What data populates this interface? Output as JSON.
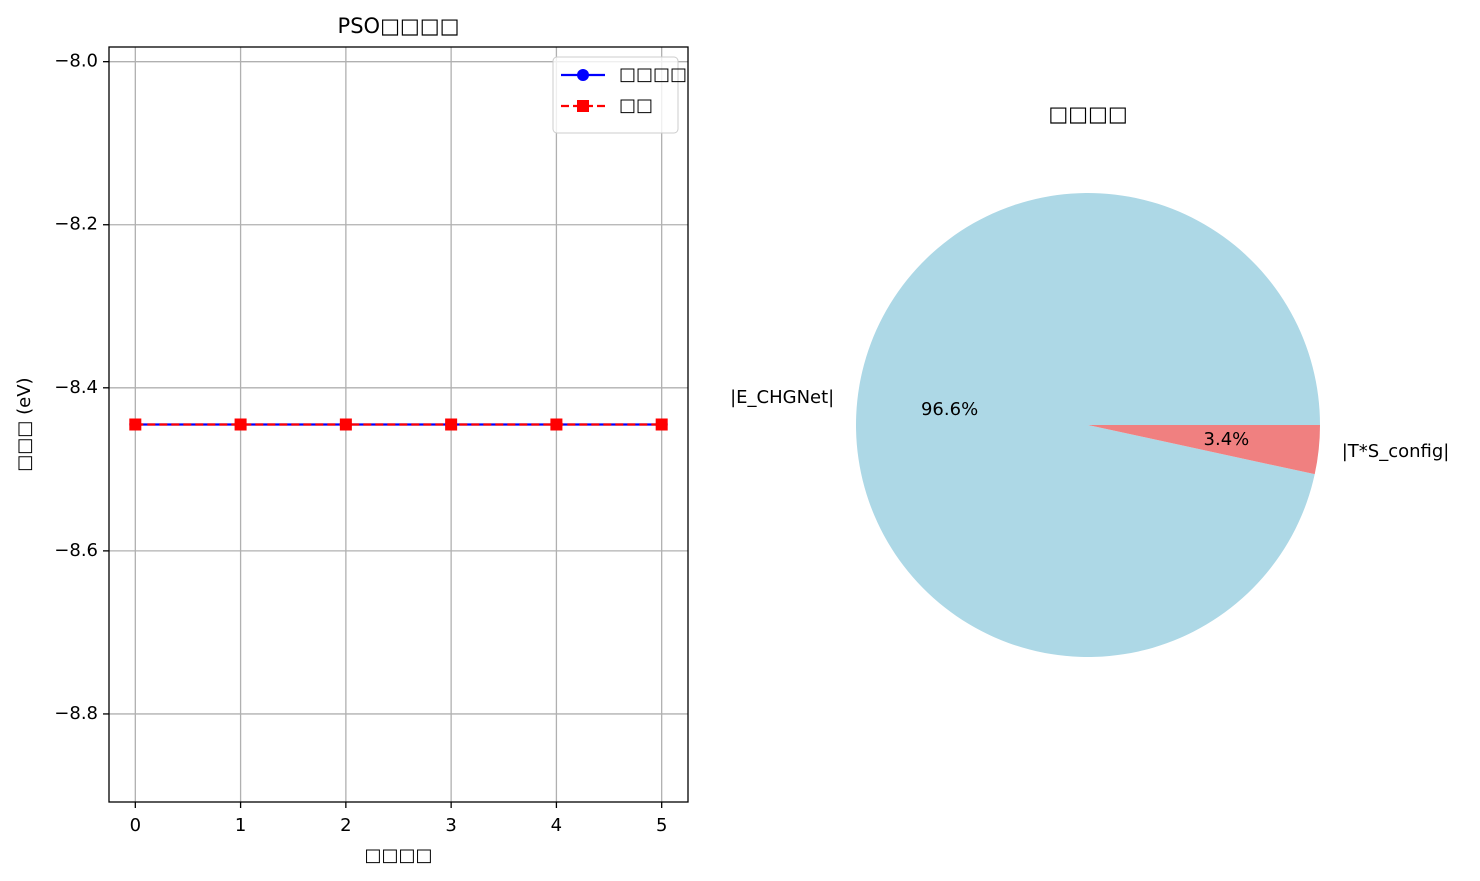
{
  "chart_data": [
    {
      "type": "line",
      "title": "PSO□□□□",
      "xlabel": "□□□□",
      "ylabel": "□□□ (eV)",
      "x": [
        0,
        1,
        2,
        3,
        4,
        5
      ],
      "series": [
        {
          "name": "□□□□",
          "color": "#0000ff",
          "linestyle": "solid",
          "marker": "circle",
          "values": [
            -8.445,
            -8.445,
            -8.445,
            -8.445,
            -8.445,
            -8.445
          ]
        },
        {
          "name": "□□",
          "color": "#ff0000",
          "linestyle": "dashed",
          "marker": "square",
          "values": [
            -8.445,
            -8.445,
            -8.445,
            -8.445,
            -8.445,
            -8.445
          ]
        }
      ],
      "xlim": [
        -0.25,
        5.25
      ],
      "xticks": [
        0,
        1,
        2,
        3,
        4,
        5
      ],
      "ylim": [
        -8.908,
        -7.982
      ],
      "yticks": [
        {
          "value": -8.8,
          "label": "−8.8"
        },
        {
          "value": -8.6,
          "label": "−8.6"
        },
        {
          "value": -8.4,
          "label": "−8.4"
        },
        {
          "value": -8.2,
          "label": "−8.2"
        },
        {
          "value": -8.0,
          "label": "−8.0"
        }
      ],
      "grid": true,
      "legend": "upper right"
    },
    {
      "type": "pie",
      "title": "□□□□",
      "categories": [
        "|E_CHGNet|",
        "|T*S_config|"
      ],
      "values": [
        96.6,
        3.4
      ],
      "value_labels": [
        "96.6%",
        "3.4%"
      ],
      "colors": [
        "#add8e6",
        "#f08080"
      ],
      "startangle": 0
    }
  ]
}
